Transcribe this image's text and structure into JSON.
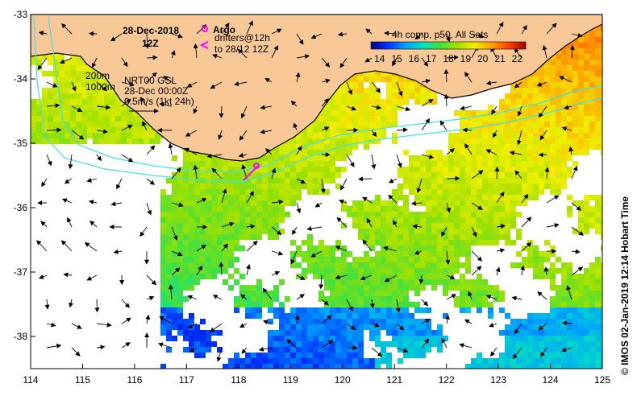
{
  "title": {
    "date": "28-Dec-2018",
    "time": "12Z"
  },
  "legend": {
    "argo_label": "Argo",
    "drifters_label": "drifters@12h",
    "drifters_period": "to 28/12 12Z",
    "argo_color": "#ff00ff",
    "drifter_color": "#ff00ff"
  },
  "isobaths": {
    "depth_1": "200m",
    "depth_2": "1000m"
  },
  "currents": {
    "product": "NRT00 GSL",
    "valid": "28-Dec 00:00Z",
    "scale": "0.5m/s (1kt 24h)"
  },
  "colorbar": {
    "title": "4h comp, p50, All Sats",
    "ticks": [
      "14",
      "15",
      "16",
      "17",
      "18",
      "19",
      "20",
      "21",
      "22"
    ],
    "min": 13.5,
    "max": 22.5,
    "colors": [
      "#000080",
      "#0030ff",
      "#00a0ff",
      "#00e0c0",
      "#40e040",
      "#a0e000",
      "#f0f000",
      "#ffa000",
      "#ff4000",
      "#a00000"
    ]
  },
  "axes": {
    "x_ticks": [
      "114",
      "115",
      "116",
      "117",
      "118",
      "119",
      "120",
      "121",
      "122",
      "123",
      "124",
      "125"
    ],
    "y_ticks": [
      "-33",
      "-34",
      "-35",
      "-36",
      "-37",
      "-38"
    ],
    "lon_range": [
      114,
      125
    ],
    "lat_range": [
      -38.5,
      -33
    ]
  },
  "colors": {
    "land": "#f8c896",
    "isobath": "#40e0f0",
    "coast": "#000000"
  },
  "credit": "© IMOS 02-Jan-2019 12:14 Hobart Time"
}
